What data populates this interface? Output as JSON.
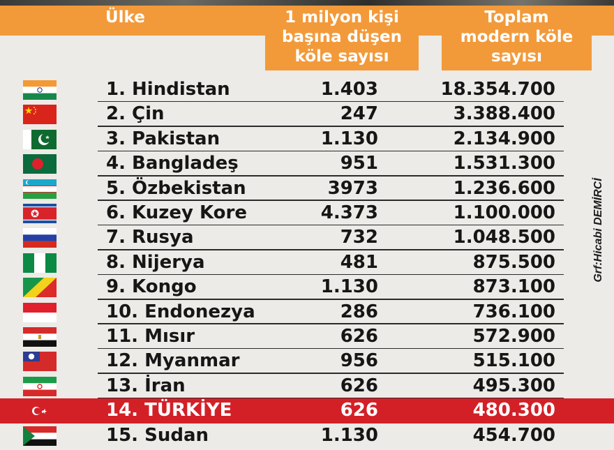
{
  "header": {
    "country_label": "Ülke",
    "per_million_lines": [
      "1 milyon kişi",
      "başına düşen",
      "köle sayısı"
    ],
    "total_lines": [
      "Toplam",
      "modern köle",
      "sayısı"
    ]
  },
  "credit": "Grf:Hicabi DEMİRCİ",
  "colors": {
    "header_orange": "#f29a3a",
    "highlight_red": "#d32027",
    "background": "#ecebe7"
  },
  "rows": [
    {
      "name": "1. Hindistan",
      "per_million": "1.403",
      "total": "18.354.700",
      "flag": "india-flag",
      "highlight": false
    },
    {
      "name": "2. Çin",
      "per_million": "247",
      "total": "3.388.400",
      "flag": "china-flag",
      "highlight": false
    },
    {
      "name": "3. Pakistan",
      "per_million": "1.130",
      "total": "2.134.900",
      "flag": "pakistan-flag",
      "highlight": false
    },
    {
      "name": "4. Bangladeş",
      "per_million": "951",
      "total": "1.531.300",
      "flag": "bangladesh-flag",
      "highlight": false
    },
    {
      "name": "5. Özbekistan",
      "per_million": "3973",
      "total": "1.236.600",
      "flag": "uzbekistan-flag",
      "highlight": false
    },
    {
      "name": "6. Kuzey Kore",
      "per_million": "4.373",
      "total": "1.100.000",
      "flag": "north-korea-flag",
      "highlight": false
    },
    {
      "name": "7. Rusya",
      "per_million": "732",
      "total": "1.048.500",
      "flag": "russia-flag",
      "highlight": false
    },
    {
      "name": "8. Nijerya",
      "per_million": "481",
      "total": "875.500",
      "flag": "nigeria-flag",
      "highlight": false
    },
    {
      "name": "9. Kongo",
      "per_million": "1.130",
      "total": "873.100",
      "flag": "congo-flag",
      "highlight": false
    },
    {
      "name": "10. Endonezya",
      "per_million": "286",
      "total": "736.100",
      "flag": "indonesia-flag",
      "highlight": false
    },
    {
      "name": "11. Mısır",
      "per_million": "626",
      "total": "572.900",
      "flag": "egypt-flag",
      "highlight": false
    },
    {
      "name": "12. Myanmar",
      "per_million": "956",
      "total": "515.100",
      "flag": "myanmar-flag",
      "highlight": false
    },
    {
      "name": "13. İran",
      "per_million": "626",
      "total": "495.300",
      "flag": "iran-flag",
      "highlight": false
    },
    {
      "name": "14. TÜRKİYE",
      "per_million": "626",
      "total": "480.300",
      "flag": "turkey-flag",
      "highlight": true
    },
    {
      "name": "15. Sudan",
      "per_million": "1.130",
      "total": "454.700",
      "flag": "sudan-flag",
      "highlight": false
    }
  ]
}
